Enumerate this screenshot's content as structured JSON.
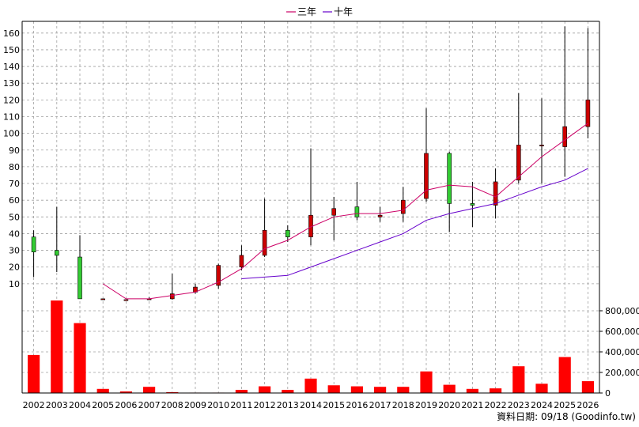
{
  "chart_data": {
    "type": "candlestick",
    "legend": [
      {
        "name": "三年",
        "color": "#cc0066"
      },
      {
        "name": "十年",
        "color": "#6600cc"
      }
    ],
    "legend_placement": "top-center",
    "source_note": "資料日期: 09/18 (Goodinfo.tw)",
    "grid": true,
    "categories": [
      "2002",
      "2003",
      "2004",
      "2005",
      "2006",
      "2007",
      "2008",
      "2009",
      "2010",
      "2011",
      "2012",
      "2013",
      "2014",
      "2015",
      "2016",
      "2017",
      "2018",
      "2019",
      "2020",
      "2021",
      "2022",
      "2023",
      "2024",
      "2025",
      "2026"
    ],
    "price_axis": {
      "ylim": [
        0,
        167
      ],
      "ticks": [
        10,
        20,
        30,
        40,
        50,
        60,
        70,
        80,
        90,
        100,
        110,
        120,
        130,
        140,
        150,
        160
      ]
    },
    "volume_axis": {
      "ylim": [
        0,
        900000
      ],
      "ticks": [
        0,
        200000,
        400000,
        600000,
        800000
      ],
      "tick_labels": [
        "0",
        "200,000",
        "400,000",
        "600,000",
        "800,000"
      ]
    },
    "candles": [
      {
        "year": "2002",
        "open": 38,
        "close": 29,
        "high": 42,
        "low": 14
      },
      {
        "year": "2003",
        "open": 30,
        "close": 27,
        "high": 56,
        "low": 17
      },
      {
        "year": "2004",
        "open": 26,
        "close": 1,
        "high": 39,
        "low": 1
      },
      {
        "year": "2005",
        "open": 1,
        "close": 1,
        "high": 1,
        "low": 0.5
      },
      {
        "year": "2006",
        "open": 0.5,
        "close": 0.5,
        "high": 0.5,
        "low": 0.5
      },
      {
        "year": "2007",
        "open": 1,
        "close": 1,
        "high": 2,
        "low": 0.5
      },
      {
        "year": "2008",
        "open": 1,
        "close": 4,
        "high": 16,
        "low": 0.5
      },
      {
        "year": "2009",
        "open": 5,
        "close": 8,
        "high": 10,
        "low": 4
      },
      {
        "year": "2010",
        "open": 9,
        "close": 21,
        "high": 22,
        "low": 7
      },
      {
        "year": "2011",
        "open": 20,
        "close": 27,
        "high": 33,
        "low": 18
      },
      {
        "year": "2012",
        "open": 27,
        "close": 42,
        "high": 61,
        "low": 26
      },
      {
        "year": "2013",
        "open": 42,
        "close": 38,
        "high": 45,
        "low": 35
      },
      {
        "year": "2014",
        "open": 38,
        "close": 51,
        "high": 91,
        "low": 33
      },
      {
        "year": "2015",
        "open": 51,
        "close": 55,
        "high": 62,
        "low": 36
      },
      {
        "year": "2016",
        "open": 56,
        "close": 50,
        "high": 71,
        "low": 48
      },
      {
        "year": "2017",
        "open": 50,
        "close": 51,
        "high": 56,
        "low": 47
      },
      {
        "year": "2018",
        "open": 52,
        "close": 60,
        "high": 68,
        "low": 47
      },
      {
        "year": "2019",
        "open": 61,
        "close": 88,
        "high": 115,
        "low": 59
      },
      {
        "year": "2020",
        "open": 88,
        "close": 58,
        "high": 89,
        "low": 41
      },
      {
        "year": "2021",
        "open": 58,
        "close": 57,
        "high": 71,
        "low": 44
      },
      {
        "year": "2022",
        "open": 57,
        "close": 71,
        "high": 79,
        "low": 49
      },
      {
        "year": "2023",
        "open": 72,
        "close": 93,
        "high": 124,
        "low": 70
      },
      {
        "year": "2024",
        "open": 93,
        "close": 93,
        "high": 121,
        "low": 70
      },
      {
        "year": "2025",
        "open": 92,
        "close": 104,
        "high": 164,
        "low": 74
      },
      {
        "year": "2026",
        "open": 104,
        "close": 120,
        "high": 163,
        "low": 97
      }
    ],
    "series": [
      {
        "name": "三年",
        "color": "#cc0066",
        "values": [
          null,
          null,
          null,
          10,
          1,
          1,
          3,
          5,
          11,
          19,
          31,
          36,
          44,
          50,
          52,
          52,
          54,
          66,
          69,
          68,
          62,
          74,
          86,
          96,
          106
        ]
      },
      {
        "name": "十年",
        "color": "#6600cc",
        "values": [
          null,
          null,
          null,
          null,
          null,
          null,
          null,
          null,
          null,
          13,
          14,
          15,
          20,
          25,
          30,
          35,
          40,
          48,
          52,
          55,
          58,
          63,
          68,
          72,
          79
        ]
      }
    ],
    "volumes": [
      370000,
      900000,
      680000,
      40000,
      15000,
      60000,
      8000,
      4000,
      4000,
      30000,
      65000,
      30000,
      140000,
      75000,
      65000,
      60000,
      60000,
      210000,
      80000,
      40000,
      45000,
      260000,
      90000,
      350000,
      115000
    ]
  }
}
